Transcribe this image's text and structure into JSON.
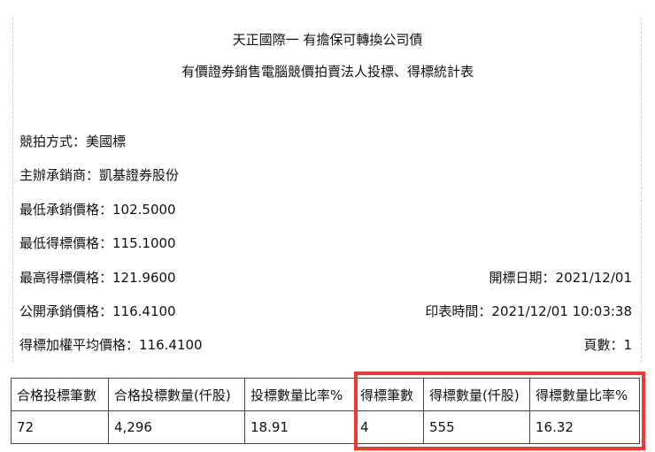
{
  "title": "天正國際一 有擔保可轉換公司債",
  "subtitle": "有價證券銷售電腦競價拍賣法人投標、得標統計表",
  "fields": [
    {
      "label": "競拍方式：",
      "value": "美國標"
    },
    {
      "label": "主辦承銷商：",
      "value": "凱基證券股份"
    },
    {
      "label": "最低承銷價格：",
      "value": "102.5000"
    },
    {
      "label": "最低得標價格：",
      "value": "115.1000"
    },
    {
      "label": "最高得標價格：",
      "value": "121.9600"
    },
    {
      "label": "公開承銷價格：",
      "value": "116.4100"
    },
    {
      "label": "得標加權平均價格：",
      "value": "116.4100"
    }
  ],
  "right_fields": [
    {
      "label": "開標日期：",
      "value": "2021/12/01"
    },
    {
      "label": "印表時間：",
      "value": "2021/12/01 10:03:38"
    },
    {
      "label": "頁數：",
      "value": "1"
    }
  ],
  "table": {
    "headers": [
      "合格投標筆數",
      "合格投標數量(仟股)",
      "投標數量比率%",
      "得標筆數",
      "得標數量(仟股)",
      "得標數量比率%"
    ],
    "row": [
      "72",
      "4,296",
      "18.91",
      "4",
      "555",
      "16.32"
    ]
  },
  "highlight_color": "#f03a30"
}
